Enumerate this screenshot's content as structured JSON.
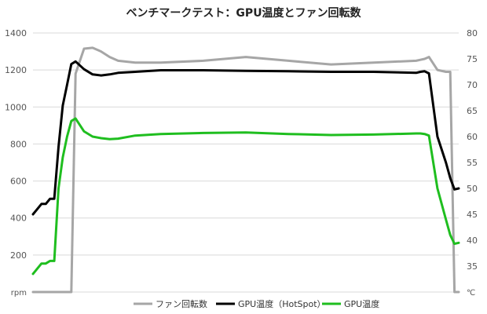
{
  "chart_data": {
    "type": "line",
    "title": "ベンチマークテスト：GPU温度とファン回転数",
    "left_axis": {
      "unit": "rpm",
      "ticks": [
        "200",
        "400",
        "600",
        "800",
        "1000",
        "1200",
        "1400"
      ],
      "range": [
        0,
        1400
      ]
    },
    "right_axis": {
      "unit": "℃",
      "ticks": [
        "35",
        "40",
        "45",
        "50",
        "55",
        "60",
        "65",
        "70",
        "75",
        "80"
      ],
      "range": [
        30,
        80
      ]
    },
    "x": [
      0,
      1,
      2,
      3,
      4,
      5,
      6,
      7,
      8,
      9,
      10,
      12,
      14,
      16,
      18,
      20,
      24,
      30,
      40,
      50,
      60,
      70,
      80,
      90,
      91,
      92,
      93,
      95,
      97,
      98,
      99,
      100
    ],
    "series": [
      {
        "name": "ファン回転数",
        "axis": "left",
        "color": "#a6a6a6",
        "values": [
          0,
          0,
          0,
          0,
          0,
          0,
          0,
          0,
          0,
          0,
          1180,
          1315,
          1320,
          1300,
          1270,
          1250,
          1240,
          1240,
          1250,
          1270,
          1250,
          1230,
          1240,
          1250,
          1255,
          1260,
          1270,
          1200,
          1190,
          1190,
          0,
          0
        ]
      },
      {
        "name": "GPU温度（HotSpot）",
        "axis": "right",
        "color": "#000000",
        "values": [
          45,
          46,
          47,
          47,
          48,
          48,
          58,
          66,
          70,
          74,
          74.5,
          73,
          72,
          71.8,
          72,
          72.3,
          72.5,
          72.8,
          72.8,
          72.7,
          72.6,
          72.5,
          72.5,
          72.3,
          72.5,
          72.6,
          72.2,
          60,
          55,
          52,
          49.8,
          50
        ]
      },
      {
        "name": "GPU温度",
        "axis": "right",
        "color": "#1fbe1f",
        "values": [
          33.5,
          34.5,
          35.5,
          35.5,
          36,
          36,
          50,
          56,
          60,
          63,
          63.5,
          61,
          60,
          59.7,
          59.5,
          59.6,
          60.2,
          60.5,
          60.7,
          60.8,
          60.5,
          60.3,
          60.4,
          60.6,
          60.6,
          60.5,
          60.2,
          50,
          44,
          41,
          39.3,
          39.5
        ]
      }
    ],
    "grid": "horizontal",
    "legend": "bottom"
  },
  "colors": {
    "grid": "#d9d9d9",
    "axis_text": "#555555"
  }
}
